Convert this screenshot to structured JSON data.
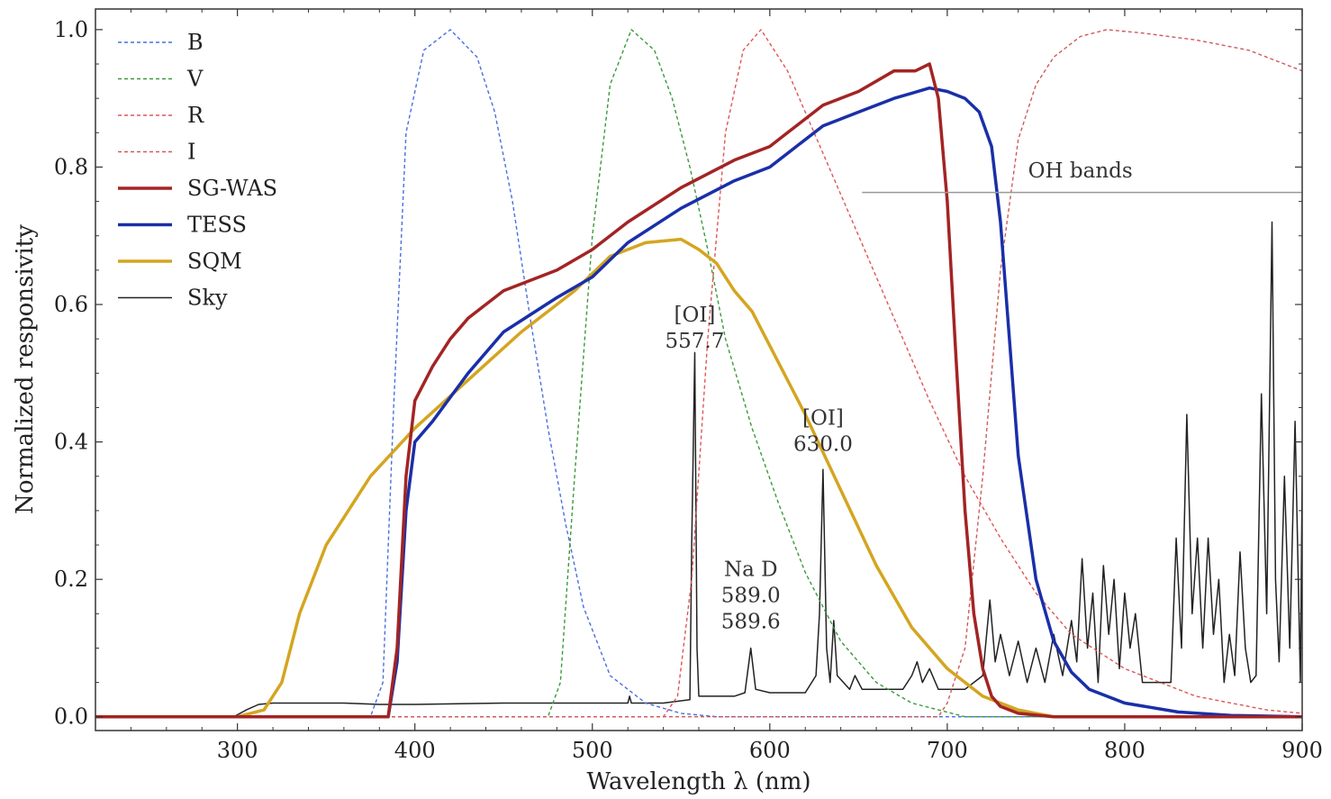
{
  "chart_data": {
    "type": "line",
    "xlabel": "Wavelength λ (nm)",
    "ylabel": "Normalized responsivity",
    "xlim": [
      220,
      900
    ],
    "ylim": [
      -0.02,
      1.03
    ],
    "xticks": [
      300,
      400,
      500,
      600,
      700,
      800,
      900
    ],
    "yticks": [
      0.0,
      0.2,
      0.4,
      0.6,
      0.8,
      1.0
    ],
    "xtick_labels": [
      "300",
      "400",
      "500",
      "600",
      "700",
      "800",
      "900"
    ],
    "ytick_labels": [
      "0.0",
      "0.2",
      "0.4",
      "0.6",
      "0.8",
      "1.0"
    ],
    "grid": false,
    "legend_position": "upper-left",
    "series": [
      {
        "name": "B",
        "color": "#4a6ee0",
        "style": "dashed",
        "x": [
          220,
          375,
          382,
          388,
          395,
          405,
          420,
          435,
          445,
          455,
          465,
          475,
          485,
          495,
          510,
          530,
          550,
          570,
          900
        ],
        "y": [
          0,
          0,
          0.05,
          0.45,
          0.85,
          0.97,
          1.0,
          0.96,
          0.88,
          0.75,
          0.58,
          0.42,
          0.28,
          0.16,
          0.06,
          0.02,
          0.005,
          0,
          0
        ]
      },
      {
        "name": "V",
        "color": "#3a9a3a",
        "style": "dashed",
        "x": [
          220,
          475,
          482,
          490,
          500,
          510,
          522,
          535,
          545,
          555,
          565,
          575,
          590,
          605,
          620,
          640,
          660,
          680,
          710,
          900
        ],
        "y": [
          0,
          0,
          0.05,
          0.35,
          0.7,
          0.92,
          1.0,
          0.97,
          0.9,
          0.8,
          0.68,
          0.55,
          0.42,
          0.31,
          0.21,
          0.11,
          0.05,
          0.02,
          0,
          0
        ]
      },
      {
        "name": "R",
        "color": "#e05555",
        "style": "dashed",
        "x": [
          220,
          540,
          548,
          556,
          565,
          575,
          585,
          595,
          610,
          630,
          650,
          670,
          690,
          710,
          730,
          750,
          770,
          800,
          840,
          880,
          900
        ],
        "y": [
          0,
          0,
          0.03,
          0.2,
          0.55,
          0.85,
          0.97,
          1.0,
          0.94,
          0.82,
          0.7,
          0.58,
          0.46,
          0.35,
          0.26,
          0.18,
          0.12,
          0.07,
          0.03,
          0.01,
          0.005
        ]
      },
      {
        "name": "I",
        "color": "#d05a5a",
        "style": "dashed",
        "x": [
          220,
          695,
          700,
          710,
          720,
          730,
          740,
          750,
          760,
          775,
          790,
          810,
          840,
          870,
          900
        ],
        "y": [
          0,
          0,
          0.02,
          0.1,
          0.35,
          0.65,
          0.84,
          0.92,
          0.96,
          0.99,
          1.0,
          0.995,
          0.985,
          0.97,
          0.94
        ]
      },
      {
        "name": "SG-WAS",
        "color": "#a32424",
        "style": "solid",
        "width": 3.5,
        "x": [
          220,
          385,
          390,
          395,
          400,
          410,
          420,
          430,
          450,
          480,
          500,
          520,
          550,
          580,
          600,
          610,
          630,
          650,
          670,
          682,
          690,
          695,
          700,
          705,
          710,
          715,
          720,
          725,
          730,
          740,
          760,
          900
        ],
        "y": [
          0,
          0,
          0.1,
          0.35,
          0.46,
          0.51,
          0.55,
          0.58,
          0.62,
          0.65,
          0.68,
          0.72,
          0.77,
          0.81,
          0.83,
          0.85,
          0.89,
          0.91,
          0.94,
          0.94,
          0.95,
          0.9,
          0.75,
          0.52,
          0.3,
          0.15,
          0.07,
          0.03,
          0.015,
          0.005,
          0,
          0
        ]
      },
      {
        "name": "TESS",
        "color": "#1a2fa8",
        "style": "solid",
        "width": 3.5,
        "x": [
          220,
          385,
          390,
          395,
          400,
          410,
          430,
          450,
          480,
          500,
          520,
          550,
          580,
          600,
          610,
          630,
          650,
          670,
          690,
          700,
          710,
          718,
          725,
          730,
          735,
          740,
          750,
          760,
          770,
          780,
          800,
          830,
          860,
          900
        ],
        "y": [
          0,
          0,
          0.08,
          0.3,
          0.4,
          0.43,
          0.5,
          0.56,
          0.61,
          0.64,
          0.69,
          0.74,
          0.78,
          0.8,
          0.82,
          0.86,
          0.88,
          0.9,
          0.915,
          0.91,
          0.9,
          0.88,
          0.83,
          0.72,
          0.55,
          0.38,
          0.2,
          0.11,
          0.065,
          0.04,
          0.02,
          0.007,
          0.002,
          0
        ]
      },
      {
        "name": "SQM",
        "color": "#d4a520",
        "style": "solid",
        "width": 3.5,
        "x": [
          220,
          300,
          315,
          325,
          335,
          350,
          375,
          400,
          430,
          460,
          490,
          510,
          530,
          550,
          560,
          570,
          580,
          590,
          600,
          620,
          640,
          660,
          680,
          700,
          720,
          740,
          760,
          900
        ],
        "y": [
          0,
          0,
          0.01,
          0.05,
          0.15,
          0.25,
          0.35,
          0.42,
          0.49,
          0.56,
          0.62,
          0.67,
          0.69,
          0.695,
          0.68,
          0.66,
          0.62,
          0.59,
          0.54,
          0.44,
          0.33,
          0.22,
          0.13,
          0.07,
          0.03,
          0.01,
          0,
          0
        ]
      },
      {
        "name": "Sky",
        "color": "#222222",
        "style": "solid",
        "width": 1.5,
        "x": [
          220,
          298,
          305,
          312,
          320,
          340,
          360,
          380,
          400,
          450,
          500,
          520,
          521,
          522,
          540,
          555,
          556,
          557.7,
          559,
          560,
          580,
          586,
          589.3,
          592,
          600,
          620,
          626,
          628,
          630,
          632,
          634,
          636,
          638,
          645,
          648,
          652,
          660,
          675,
          680,
          683,
          686,
          690,
          695,
          700,
          710,
          720,
          724,
          727,
          730,
          735,
          740,
          745,
          750,
          755,
          760,
          765,
          770,
          773,
          776,
          779,
          782,
          785,
          788,
          791,
          794,
          797,
          800,
          803,
          806,
          810,
          818,
          826,
          829,
          832,
          835,
          838,
          841,
          844,
          847,
          850,
          853,
          856,
          859,
          862,
          865,
          868,
          871,
          874,
          877,
          880,
          883,
          885,
          887,
          890,
          893,
          896,
          899,
          900
        ],
        "y": [
          0,
          0,
          0.01,
          0.018,
          0.02,
          0.02,
          0.02,
          0.018,
          0.018,
          0.02,
          0.02,
          0.02,
          0.03,
          0.02,
          0.02,
          0.025,
          0.25,
          0.53,
          0.1,
          0.03,
          0.03,
          0.035,
          0.1,
          0.04,
          0.035,
          0.035,
          0.06,
          0.15,
          0.36,
          0.1,
          0.05,
          0.14,
          0.06,
          0.04,
          0.06,
          0.04,
          0.04,
          0.04,
          0.06,
          0.08,
          0.05,
          0.07,
          0.04,
          0.04,
          0.04,
          0.06,
          0.17,
          0.08,
          0.12,
          0.06,
          0.11,
          0.05,
          0.1,
          0.05,
          0.12,
          0.06,
          0.14,
          0.08,
          0.23,
          0.1,
          0.18,
          0.05,
          0.22,
          0.12,
          0.2,
          0.07,
          0.18,
          0.1,
          0.15,
          0.05,
          0.05,
          0.05,
          0.26,
          0.1,
          0.44,
          0.15,
          0.26,
          0.1,
          0.26,
          0.12,
          0.2,
          0.05,
          0.12,
          0.06,
          0.24,
          0.1,
          0.05,
          0.06,
          0.47,
          0.15,
          0.72,
          0.2,
          0.08,
          0.35,
          0.1,
          0.43,
          0.05,
          0.35
        ]
      }
    ],
    "annotations": [
      {
        "lines": [
          "[OI]",
          "557.7"
        ],
        "x": 557.7,
        "y": 0.575
      },
      {
        "lines": [
          "Na D",
          "589.0",
          "589.6"
        ],
        "x": 589.3,
        "y": 0.205
      },
      {
        "lines": [
          "[OI]",
          "630.0"
        ],
        "x": 630.0,
        "y": 0.425
      },
      {
        "lines": [
          "OH bands"
        ],
        "x": 775,
        "y": 0.785,
        "bracket": [
          652,
          900,
          0.763
        ]
      }
    ]
  }
}
